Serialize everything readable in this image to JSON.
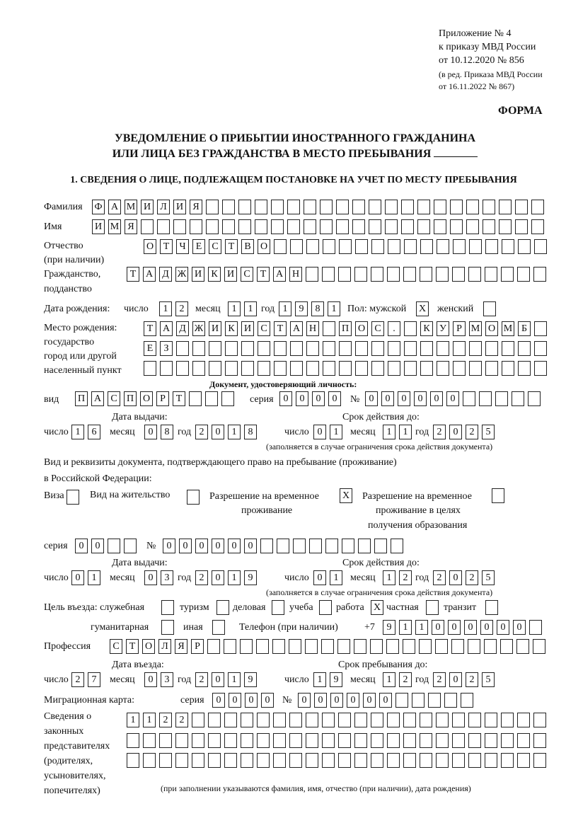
{
  "header": {
    "appendix": "Приложение № 4",
    "order": "к приказу МВД России",
    "order_date": "от 10.12.2020 № 856",
    "edition": "(в ред. Приказа МВД России",
    "edition_date": "от 16.11.2022 № 867)",
    "form_label": "ФОРМА",
    "title_line1": "УВЕДОМЛЕНИЕ О ПРИБЫТИИ ИНОСТРАННОГО ГРАЖДАНИНА",
    "title_line2": "ИЛИ ЛИЦА БЕЗ ГРАЖДАНСТВА В МЕСТО ПРЕБЫВАНИЯ",
    "section1": "1. СВЕДЕНИЯ О ЛИЦЕ, ПОДЛЕЖАЩЕМ ПОСТАНОВКЕ НА УЧЕТ ПО МЕСТУ ПРЕБЫВАНИЯ"
  },
  "labels": {
    "surname": "Фамилия",
    "name": "Имя",
    "patronymic": "Отчество",
    "patronymic_note": "(при наличии)",
    "citizenship": "Гражданство,",
    "citizenship2": "подданство",
    "birth_date": "Дата рождения:",
    "day": "число",
    "month": "месяц",
    "year": "год",
    "sex": "Пол: мужской",
    "female": "женский",
    "birthplace1": "Место рождения:",
    "birthplace2": "государство",
    "birthplace3": "город или другой",
    "birthplace4": "населенный пункт",
    "id_doc": "Документ, удостоверяющий личность:",
    "kind": "вид",
    "series": "серия",
    "number": "№",
    "issue_date": "Дата выдачи:",
    "valid_until": "Срок действия до:",
    "valid_note": "(заполняется в случае ограничения срока действия документа)",
    "stay_doc1": "Вид и реквизиты документа, подтверждающего право на пребывание (проживание)",
    "stay_doc2": "в Российской Федерации:",
    "visa": "Виза",
    "residence": "Вид на жительство",
    "trp1": "Разрешение на временное",
    "trp2": "проживание",
    "trp_edu1": "Разрешение на временное",
    "trp_edu2": "проживание в целях",
    "trp_edu3": "получения образования",
    "purpose": "Цель въезда: служебная",
    "tourism": "туризм",
    "business": "деловая",
    "study": "учеба",
    "work": "работа",
    "private": "частная",
    "transit": "транзит",
    "humanitarian": "гуманитарная",
    "other": "иная",
    "phone": "Телефон (при наличии)",
    "phone_prefix": "+7",
    "profession": "Профессия",
    "entry_date": "Дата въезда:",
    "stay_until": "Срок пребывания до:",
    "migration_card": "Миграционная карта:",
    "reps1": "Сведения о",
    "reps2": "законных",
    "reps3": "представителях",
    "reps4": "(родителях,",
    "reps5": "усыновителях,",
    "reps6": "попечителях)",
    "reps_note": "(при заполнении указываются фамилия, имя, отчество (при наличии), дата рождения)"
  },
  "values": {
    "surname": "ФАМИЛИЯ",
    "name": "ИМЯ",
    "patronymic": "ОТЧЕСТВО",
    "citizenship": "ТАДЖИКИСТАН",
    "birth_day": "12",
    "birth_month": "11",
    "birth_year": "1981",
    "sex_male": "X",
    "sex_female": "",
    "birthplace_line1": "ТАДЖИКИСТАН ПОС. КУРМОМБ",
    "birthplace_line2": "ЕЗ",
    "birthplace_line3": "",
    "id_kind": "ПАСПОРТ",
    "id_series": "0000",
    "id_number": "000000",
    "id_issue_day": "16",
    "id_issue_month": "08",
    "id_issue_year": "2018",
    "id_valid_day": "01",
    "id_valid_month": "11",
    "id_valid_year": "2025",
    "visa": "",
    "residence": "",
    "trp": "X",
    "trp_edu": "",
    "stay_series": "00",
    "stay_number": "000000",
    "stay_issue_day": "01",
    "stay_issue_month": "03",
    "stay_issue_year": "2019",
    "stay_valid_day": "01",
    "stay_valid_month": "12",
    "stay_valid_year": "2025",
    "purpose_official": "",
    "purpose_tourism": "",
    "purpose_business": "",
    "purpose_study": "",
    "purpose_work": "X",
    "purpose_private": "",
    "purpose_transit": "",
    "purpose_humanitarian": "",
    "purpose_other": "",
    "phone": "911000000",
    "profession": "СТОЛЯР",
    "entry_day": "27",
    "entry_month": "03",
    "entry_year": "2019",
    "stay_until_day": "19",
    "stay_until_month": "12",
    "stay_until_year": "2025",
    "mc_series": "0000",
    "mc_number": "000000",
    "reps_line1": "1122",
    "reps_line2": "",
    "reps_line3": ""
  }
}
